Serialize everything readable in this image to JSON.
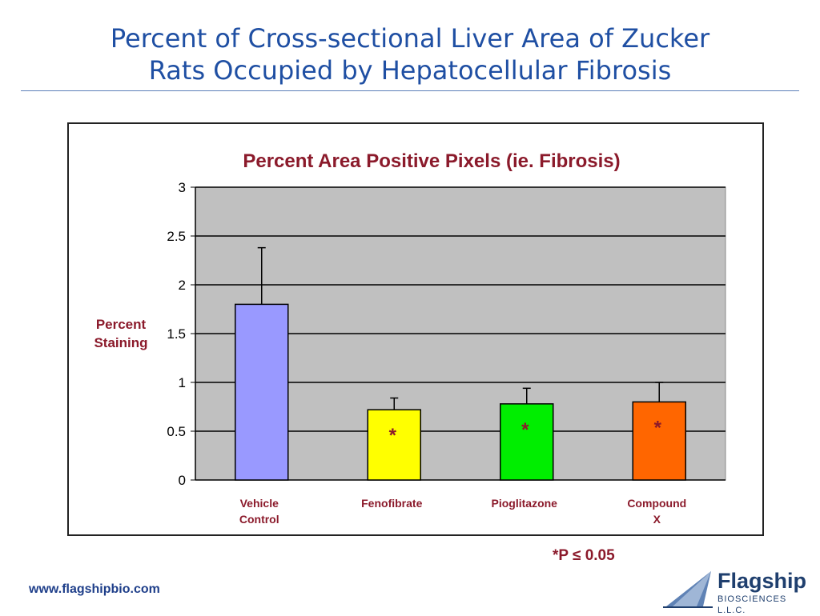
{
  "slide": {
    "title_line1": "Percent of Cross-sectional Liver Area of Zucker",
    "title_line2": "Rats Occupied by Hepatocellular Fibrosis",
    "footnote": "*P ≤ 0.05",
    "website": "www.flagshipbio.com"
  },
  "logo": {
    "name": "Flagship",
    "subtitle": "BIOSCIENCES L.L.C."
  },
  "colors": {
    "plot_background": "#c0c0c0",
    "title_blue": "#1f4fa3",
    "label_maroon": "#8b1a2b"
  },
  "chart_data": {
    "type": "bar",
    "title": "Percent Area Positive Pixels (ie. Fibrosis)",
    "ylabel_lines": [
      "Percent",
      "Staining"
    ],
    "xlabel": "",
    "ylim": [
      0,
      3
    ],
    "yticks": [
      "0",
      "0.5",
      "1",
      "1.5",
      "2",
      "2.5",
      "3"
    ],
    "ytick_values": [
      0,
      0.5,
      1,
      1.5,
      2,
      2.5,
      3
    ],
    "grid": true,
    "categories": [
      {
        "lines": [
          "Vehicle",
          "Control"
        ],
        "value": 1.8,
        "error": 0.58,
        "color": "#9999ff",
        "significant": false
      },
      {
        "lines": [
          "Fenofibrate"
        ],
        "value": 0.72,
        "error": 0.12,
        "color": "#ffff00",
        "significant": true
      },
      {
        "lines": [
          "Pioglitazone"
        ],
        "value": 0.78,
        "error": 0.16,
        "color": "#00ee00",
        "significant": true
      },
      {
        "lines": [
          "Compound",
          "X"
        ],
        "value": 0.8,
        "error": 0.2,
        "color": "#ff6600",
        "significant": true
      }
    ],
    "significance_marker": "*"
  }
}
